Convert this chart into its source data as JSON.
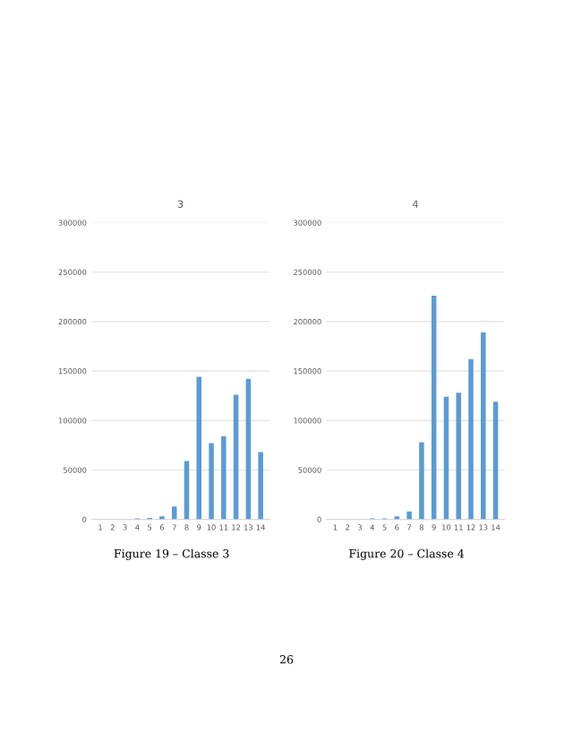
{
  "chart_data": [
    {
      "type": "bar",
      "title": "3",
      "categories": [
        "1",
        "2",
        "3",
        "4",
        "5",
        "6",
        "7",
        "8",
        "9",
        "10",
        "11",
        "12",
        "13",
        "14"
      ],
      "color": "#5b9bd5",
      "values": [
        0,
        0,
        0,
        1000,
        1500,
        3000,
        13000,
        59000,
        144000,
        77000,
        84000,
        126000,
        142000,
        68000
      ],
      "ylim": [
        0,
        300000
      ],
      "yticks": [
        0,
        50000,
        100000,
        150000,
        200000,
        250000,
        300000
      ],
      "grid": "y",
      "annotations": [
        "Figure 19 – Classe 3"
      ]
    },
    {
      "type": "bar",
      "title": "4",
      "categories": [
        "1",
        "2",
        "3",
        "4",
        "5",
        "6",
        "7",
        "8",
        "9",
        "10",
        "11",
        "12",
        "13",
        "14"
      ],
      "color": "#5b9bd5",
      "values": [
        0,
        0,
        0,
        1000,
        1000,
        3000,
        8000,
        78000,
        226000,
        124000,
        128000,
        162000,
        189000,
        119000
      ],
      "ylim": [
        0,
        300000
      ],
      "yticks": [
        0,
        50000,
        100000,
        150000,
        200000,
        250000,
        300000
      ],
      "grid": "y",
      "annotations": [
        "Figure 20 – Classe 4",
        "26"
      ]
    }
  ]
}
